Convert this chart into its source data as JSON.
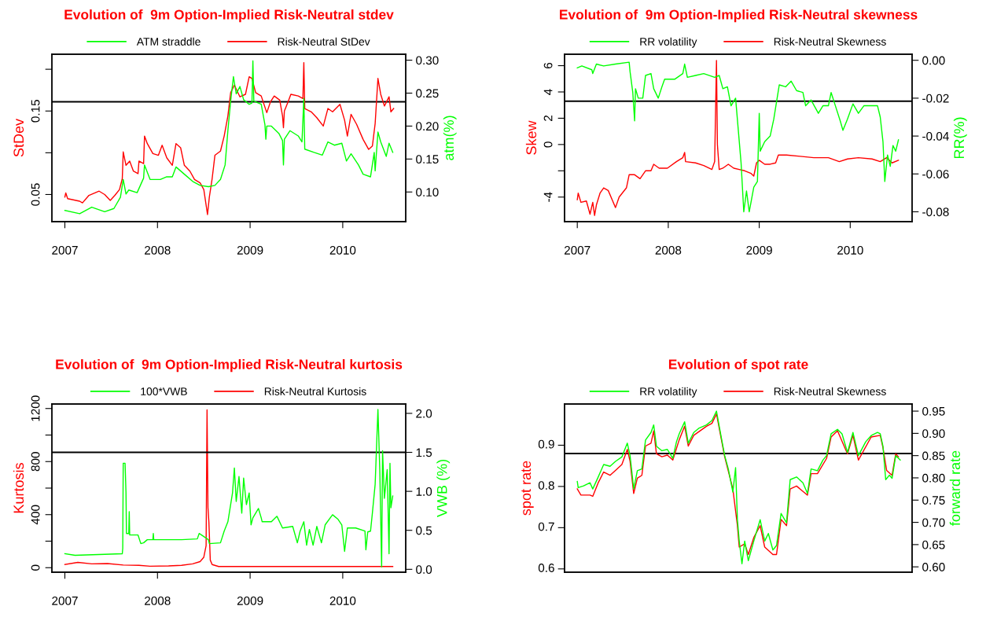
{
  "chart_data": [
    {
      "type": "line",
      "title": "Evolution of  9m Option-Implied Risk-Neutral stdev",
      "ylabel": "StDev",
      "y2label": "atm(%)",
      "legend": "top",
      "xlim": [
        2006.86,
        2010.68
      ],
      "xticks": [
        2007,
        2008,
        2009,
        2010
      ],
      "ylim": [
        0.0175,
        0.218
      ],
      "yticks": [
        0.05,
        {
          "value": 0.1,
          "label": null
        },
        0.15,
        {
          "value": 0.2,
          "label": null
        }
      ],
      "y2lim": [
        0.055,
        0.309
      ],
      "y2ticks": [
        {
          "value": 0.1,
          "label": "0.10"
        },
        0.15,
        {
          "value": 0.2,
          "label": "0.20"
        },
        0.25,
        {
          "value": 0.3,
          "label": "0.30"
        }
      ],
      "ref_lines": [
        {
          "axis": "y",
          "value": 0.161,
          "color": "#000000"
        }
      ],
      "series": [
        {
          "name": "ATM straddle",
          "color": "#00ff00",
          "axis": "y2",
          "x": [
            2007.0,
            2007.16,
            2007.29,
            2007.43,
            2007.53,
            2007.6,
            2007.63,
            2007.66,
            2007.69,
            2007.78,
            2007.85,
            2007.86,
            2007.92,
            2008.03,
            2008.1,
            2008.16,
            2008.2,
            2008.29,
            2008.38,
            2008.46,
            2008.55,
            2008.62,
            2008.68,
            2008.73,
            2008.76,
            2008.79,
            2008.82,
            2008.85,
            2008.89,
            2008.93,
            2008.99,
            2009.02,
            2009.03,
            2009.04,
            2009.12,
            2009.16,
            2009.17,
            2009.18,
            2009.23,
            2009.31,
            2009.35,
            2009.36,
            2009.37,
            2009.43,
            2009.52,
            2009.56,
            2009.58,
            2009.59,
            2009.69,
            2009.78,
            2009.84,
            2009.91,
            2009.99,
            2010.04,
            2010.09,
            2010.17,
            2010.22,
            2010.3,
            2010.34,
            2010.35,
            2010.38,
            2010.41,
            2010.47,
            2010.5,
            2010.54
          ],
          "values": [
            0.072,
            0.067,
            0.077,
            0.07,
            0.075,
            0.092,
            0.119,
            0.097,
            0.103,
            0.099,
            0.121,
            0.141,
            0.119,
            0.119,
            0.123,
            0.123,
            0.138,
            0.127,
            0.116,
            0.11,
            0.108,
            0.11,
            0.119,
            0.141,
            0.193,
            0.238,
            0.275,
            0.249,
            0.26,
            0.24,
            0.233,
            0.235,
            0.299,
            0.238,
            0.233,
            0.202,
            0.18,
            0.2,
            0.2,
            0.189,
            0.178,
            0.141,
            0.18,
            0.193,
            0.185,
            0.176,
            0.242,
            0.165,
            0.16,
            0.156,
            0.176,
            0.171,
            0.174,
            0.147,
            0.158,
            0.141,
            0.127,
            0.123,
            0.16,
            0.132,
            0.191,
            0.176,
            0.154,
            0.174,
            0.16
          ]
        },
        {
          "name": "Risk-Neutral StDev",
          "color": "#ff0000",
          "x": [
            2007.0,
            2007.01,
            2007.03,
            2007.16,
            2007.19,
            2007.26,
            2007.37,
            2007.43,
            2007.49,
            2007.54,
            2007.59,
            2007.62,
            2007.63,
            2007.66,
            2007.7,
            2007.74,
            2007.79,
            2007.8,
            2007.85,
            2007.86,
            2007.89,
            2007.95,
            2008.01,
            2008.05,
            2008.1,
            2008.16,
            2008.2,
            2008.25,
            2008.29,
            2008.35,
            2008.4,
            2008.46,
            2008.5,
            2008.54,
            2008.56,
            2008.59,
            2008.62,
            2008.68,
            2008.72,
            2008.76,
            2008.79,
            2008.83,
            2008.89,
            2008.95,
            2008.99,
            2009.02,
            2009.06,
            2009.12,
            2009.18,
            2009.22,
            2009.26,
            2009.32,
            2009.35,
            2009.36,
            2009.37,
            2009.41,
            2009.44,
            2009.52,
            2009.57,
            2009.58,
            2009.59,
            2009.66,
            2009.72,
            2009.79,
            2009.84,
            2009.89,
            2009.97,
            2010.02,
            2010.05,
            2010.09,
            2010.15,
            2010.22,
            2010.28,
            2010.32,
            2010.35,
            2010.38,
            2010.41,
            2010.45,
            2010.5,
            2010.52,
            2010.55
          ],
          "values": [
            0.047,
            0.052,
            0.045,
            0.042,
            0.04,
            0.049,
            0.054,
            0.05,
            0.043,
            0.049,
            0.056,
            0.069,
            0.101,
            0.085,
            0.09,
            0.078,
            0.075,
            0.09,
            0.087,
            0.12,
            0.111,
            0.099,
            0.097,
            0.109,
            0.094,
            0.085,
            0.111,
            0.106,
            0.085,
            0.078,
            0.068,
            0.064,
            0.056,
            0.026,
            0.047,
            0.069,
            0.097,
            0.102,
            0.12,
            0.144,
            0.172,
            0.181,
            0.167,
            0.17,
            0.191,
            0.189,
            0.172,
            0.168,
            0.148,
            0.161,
            0.168,
            0.163,
            0.144,
            0.13,
            0.15,
            0.161,
            0.17,
            0.168,
            0.165,
            0.208,
            0.153,
            0.149,
            0.142,
            0.132,
            0.153,
            0.149,
            0.158,
            0.139,
            0.12,
            0.146,
            0.134,
            0.116,
            0.104,
            0.108,
            0.135,
            0.189,
            0.17,
            0.156,
            0.167,
            0.149,
            0.153
          ]
        }
      ]
    },
    {
      "type": "line",
      "title": "Evolution of  9m Option-Implied Risk-Neutral skewness",
      "ylabel": "Skew",
      "y2label": "RR(%)",
      "legend": "top",
      "xlim": [
        2006.86,
        2010.68
      ],
      "xticks": [
        2007,
        2008,
        2009,
        2010
      ],
      "ylim": [
        -5.87,
        6.87
      ],
      "yticks": [
        -4,
        {
          "value": -2,
          "label": null
        },
        0,
        2,
        4,
        6
      ],
      "y2lim": [
        -0.0852,
        0.0032
      ],
      "y2ticks": [
        -0.08,
        -0.06,
        -0.04,
        -0.02,
        {
          "value": 0,
          "label": "0.00"
        }
      ],
      "ref_lines": [
        {
          "axis": "y",
          "value": 3.3,
          "color": "#000000"
        }
      ],
      "series": [
        {
          "name": "RR volatility",
          "color": "#00ff00",
          "axis": "y2",
          "x": [
            2007.0,
            2007.05,
            2007.16,
            2007.17,
            2007.21,
            2007.29,
            2007.42,
            2007.57,
            2007.58,
            2007.61,
            2007.63,
            2007.64,
            2007.67,
            2007.72,
            2007.75,
            2007.81,
            2007.84,
            2007.89,
            2007.93,
            2007.96,
            2008.07,
            2008.16,
            2008.18,
            2008.21,
            2008.3,
            2008.39,
            2008.51,
            2008.56,
            2008.6,
            2008.65,
            2008.69,
            2008.74,
            2008.77,
            2008.8,
            2008.83,
            2008.86,
            2008.89,
            2008.94,
            2008.98,
            2009.0,
            2009.01,
            2009.06,
            2009.12,
            2009.16,
            2009.19,
            2009.22,
            2009.29,
            2009.35,
            2009.41,
            2009.48,
            2009.51,
            2009.57,
            2009.65,
            2009.7,
            2009.76,
            2009.79,
            2009.83,
            2009.89,
            2009.92,
            2009.97,
            2010.03,
            2010.09,
            2010.15,
            2010.23,
            2010.3,
            2010.33,
            2010.36,
            2010.38,
            2010.41,
            2010.44,
            2010.47,
            2010.5,
            2010.53
          ],
          "values": [
            -0.004,
            -0.003,
            -0.005,
            -0.007,
            -0.002,
            -0.003,
            -0.002,
            -0.001,
            -0.006,
            -0.017,
            -0.032,
            -0.015,
            -0.02,
            -0.02,
            -0.008,
            -0.007,
            -0.015,
            -0.02,
            -0.014,
            -0.01,
            -0.01,
            -0.007,
            -0.002,
            -0.009,
            -0.008,
            -0.007,
            -0.009,
            -0.008,
            -0.015,
            -0.014,
            -0.024,
            -0.02,
            -0.037,
            -0.054,
            -0.08,
            -0.069,
            -0.08,
            -0.067,
            -0.064,
            -0.028,
            -0.048,
            -0.043,
            -0.04,
            -0.031,
            -0.022,
            -0.013,
            -0.014,
            -0.011,
            -0.016,
            -0.017,
            -0.024,
            -0.021,
            -0.028,
            -0.024,
            -0.024,
            -0.017,
            -0.023,
            -0.032,
            -0.037,
            -0.031,
            -0.023,
            -0.028,
            -0.024,
            -0.024,
            -0.024,
            -0.03,
            -0.043,
            -0.064,
            -0.05,
            -0.056,
            -0.045,
            -0.048,
            -0.042
          ]
        },
        {
          "name": "Risk-Neutral Skewness",
          "color": "#ff0000",
          "x": [
            2007.0,
            2007.01,
            2007.04,
            2007.1,
            2007.14,
            2007.17,
            2007.19,
            2007.21,
            2007.25,
            2007.29,
            2007.34,
            2007.42,
            2007.46,
            2007.54,
            2007.57,
            2007.63,
            2007.69,
            2007.75,
            2007.81,
            2007.84,
            2007.9,
            2007.99,
            2008.09,
            2008.16,
            2008.18,
            2008.19,
            2008.3,
            2008.39,
            2008.48,
            2008.51,
            2008.53,
            2008.54,
            2008.56,
            2008.6,
            2008.66,
            2008.72,
            2008.78,
            2008.84,
            2008.91,
            2008.94,
            2008.97,
            2009.0,
            2009.06,
            2009.12,
            2009.18,
            2009.21,
            2009.3,
            2009.45,
            2009.6,
            2009.76,
            2009.88,
            2009.97,
            2010.09,
            2010.24,
            2010.33,
            2010.4,
            2010.46,
            2010.53
          ],
          "values": [
            -4.2,
            -3.7,
            -4.4,
            -4.3,
            -5.3,
            -4.4,
            -5.4,
            -4.6,
            -3.7,
            -3.3,
            -3.5,
            -4.8,
            -4.0,
            -3.3,
            -2.3,
            -2.3,
            -2.6,
            -2.0,
            -2.0,
            -1.5,
            -1.8,
            -1.8,
            -1.3,
            -1.0,
            -0.6,
            -1.3,
            -1.4,
            -1.6,
            -1.9,
            -1.3,
            6.4,
            0.0,
            -1.9,
            -1.8,
            -1.5,
            -1.8,
            -1.9,
            -2.0,
            -2.2,
            -2.4,
            -1.4,
            -1.2,
            -1.5,
            -1.5,
            -1.4,
            -0.8,
            -0.8,
            -0.9,
            -1.0,
            -1.0,
            -1.3,
            -1.1,
            -1.0,
            -1.1,
            -1.3,
            -1.0,
            -1.4,
            -1.2
          ]
        }
      ]
    },
    {
      "type": "line",
      "title": "Evolution of  9m Option-Implied Risk-Neutral kurtosis",
      "ylabel": "Kurtosis",
      "y2label": "VWB (%)",
      "legend": "top",
      "xlim": [
        2006.86,
        2010.68
      ],
      "xticks": [
        2007,
        2008,
        2009,
        2010
      ],
      "ylim": [
        -34,
        1234
      ],
      "yticks": [
        0,
        {
          "value": 200,
          "label": null
        },
        400,
        {
          "value": 600,
          "label": null
        },
        800,
        {
          "value": 1000,
          "label": null
        },
        1200
      ],
      "y2lim": [
        -0.037,
        2.12
      ],
      "y2ticks": [
        {
          "value": 0,
          "label": "0.0"
        },
        0.5,
        {
          "value": 1,
          "label": "1.0"
        },
        1.5,
        {
          "value": 2,
          "label": "2.0"
        }
      ],
      "ref_lines": [
        {
          "axis": "y2",
          "value": 1.5,
          "color": "#000000"
        }
      ],
      "series": [
        {
          "name": "100*VWB",
          "color": "#00ff00",
          "axis": "y2",
          "x": [
            2007.0,
            2007.11,
            2007.62,
            2007.625,
            2007.63,
            2007.65,
            2007.66,
            2007.665,
            2007.69,
            2007.695,
            2007.7,
            2007.79,
            2007.82,
            2007.85,
            2007.89,
            2007.95,
            2007.955,
            2007.96,
            2008.26,
            2008.43,
            2008.45,
            2008.55,
            2008.56,
            2008.68,
            2008.72,
            2008.76,
            2008.81,
            2008.83,
            2008.85,
            2008.88,
            2008.91,
            2008.93,
            2008.96,
            2008.99,
            2009.01,
            2009.03,
            2009.09,
            2009.12,
            2009.13,
            2009.23,
            2009.29,
            2009.35,
            2009.46,
            2009.51,
            2009.54,
            2009.58,
            2009.61,
            2009.64,
            2009.68,
            2009.72,
            2009.77,
            2009.81,
            2009.89,
            2009.95,
            2009.99,
            2010.02,
            2010.05,
            2010.14,
            2010.24,
            2010.25,
            2010.27,
            2010.3,
            2010.32,
            2010.35,
            2010.38,
            2010.4,
            2010.42,
            2010.43,
            2010.45,
            2010.48,
            2010.5,
            2010.51,
            2010.52,
            2010.54
          ],
          "values": [
            0.2,
            0.18,
            0.2,
            0.27,
            1.36,
            1.36,
            0.98,
            0.46,
            0.46,
            0.74,
            0.44,
            0.44,
            0.33,
            0.34,
            0.38,
            0.38,
            0.46,
            0.38,
            0.38,
            0.39,
            0.46,
            0.38,
            0.33,
            0.34,
            0.49,
            0.61,
            0.98,
            1.3,
            0.87,
            1.19,
            0.72,
            1.17,
            0.83,
            0.98,
            0.57,
            0.66,
            0.78,
            0.66,
            0.61,
            0.61,
            0.68,
            0.53,
            0.55,
            0.34,
            0.49,
            0.61,
            0.31,
            0.51,
            0.31,
            0.55,
            0.34,
            0.57,
            0.7,
            0.64,
            0.57,
            0.23,
            0.53,
            0.53,
            0.49,
            0.25,
            0.48,
            0.49,
            0.72,
            1.09,
            2.05,
            1.28,
            0.03,
            1.52,
            0.91,
            1.28,
            0.2,
            1.36,
            0.79,
            0.94
          ]
        },
        {
          "name": "Risk-Neutral Kurtosis",
          "color": "#ff0000",
          "x": [
            2007.0,
            2007.14,
            2007.29,
            2007.46,
            2007.63,
            2007.8,
            2007.92,
            2008.12,
            2008.26,
            2008.38,
            2008.46,
            2008.5,
            2008.525,
            2008.535,
            2008.545,
            2008.555,
            2008.57,
            2008.59,
            2008.66,
            2008.83,
            2010.54
          ],
          "values": [
            24,
            40,
            29,
            31,
            20,
            18,
            11,
            13,
            18,
            29,
            46,
            79,
            167,
            1190,
            453,
            343,
            57,
            24,
            9,
            9,
            9
          ]
        }
      ]
    },
    {
      "type": "line",
      "title": "Evolution of spot rate",
      "ylabel": "spot rate",
      "y2label": "forward rate",
      "legend": "top",
      "tick_labels": "y",
      "xlim": [
        2006.86,
        2010.68
      ],
      "ylim": [
        0.592,
        1.0
      ],
      "yticks": [
        0.6,
        0.7,
        0.8,
        0.9
      ],
      "y2lim": [
        0.588,
        0.966
      ],
      "y2ticks": [
        {
          "value": 0.6,
          "label": "0.60"
        },
        0.65,
        {
          "value": 0.7,
          "label": "0.70"
        },
        0.75,
        {
          "value": 0.8,
          "label": "0.80"
        },
        0.85,
        {
          "value": 0.9,
          "label": "0.90"
        },
        0.95
      ],
      "ref_lines": [
        {
          "axis": "y",
          "value": 0.88,
          "color": "#000000"
        }
      ],
      "series": [
        {
          "name": "RR volatility",
          "color": "#00ff00",
          "axis": "y2",
          "x": [
            2007.0,
            2007.01,
            2007.07,
            2007.14,
            2007.17,
            2007.23,
            2007.29,
            2007.36,
            2007.42,
            2007.49,
            2007.55,
            2007.58,
            2007.62,
            2007.66,
            2007.71,
            2007.75,
            2007.81,
            2007.84,
            2007.87,
            2007.93,
            2007.99,
            2008.05,
            2008.09,
            2008.12,
            2008.18,
            2008.22,
            2008.28,
            2008.34,
            2008.42,
            2008.48,
            2008.53,
            2008.57,
            2008.62,
            2008.66,
            2008.71,
            2008.74,
            2008.76,
            2008.78,
            2008.81,
            2008.84,
            2008.88,
            2008.94,
            2009.01,
            2009.06,
            2009.1,
            2009.15,
            2009.19,
            2009.24,
            2009.3,
            2009.34,
            2009.41,
            2009.48,
            2009.53,
            2009.57,
            2009.64,
            2009.7,
            2009.74,
            2009.79,
            2009.86,
            2009.91,
            2009.97,
            2010.03,
            2010.09,
            2010.17,
            2010.23,
            2010.3,
            2010.33,
            2010.36,
            2010.39,
            2010.43,
            2010.46,
            2010.5,
            2010.53,
            2010.55
          ],
          "values": [
            0.792,
            0.778,
            0.782,
            0.789,
            0.775,
            0.802,
            0.83,
            0.826,
            0.837,
            0.847,
            0.878,
            0.85,
            0.775,
            0.816,
            0.82,
            0.885,
            0.902,
            0.919,
            0.871,
            0.861,
            0.864,
            0.844,
            0.881,
            0.899,
            0.926,
            0.878,
            0.902,
            0.912,
            0.919,
            0.929,
            0.95,
            0.905,
            0.85,
            0.82,
            0.768,
            0.823,
            0.706,
            0.658,
            0.607,
            0.658,
            0.614,
            0.658,
            0.706,
            0.658,
            0.675,
            0.638,
            0.648,
            0.72,
            0.699,
            0.796,
            0.802,
            0.789,
            0.765,
            0.82,
            0.816,
            0.84,
            0.85,
            0.899,
            0.909,
            0.899,
            0.857,
            0.902,
            0.85,
            0.881,
            0.895,
            0.902,
            0.899,
            0.871,
            0.796,
            0.806,
            0.799,
            0.85,
            0.844,
            0.84
          ]
        },
        {
          "name": "Risk-Neutral Skewness",
          "color": "#ff0000",
          "x": [
            2007.0,
            2007.04,
            2007.14,
            2007.17,
            2007.23,
            2007.29,
            2007.36,
            2007.42,
            2007.49,
            2007.55,
            2007.58,
            2007.62,
            2007.66,
            2007.71,
            2007.75,
            2007.81,
            2007.84,
            2007.87,
            2007.93,
            2007.99,
            2008.05,
            2008.12,
            2008.18,
            2008.22,
            2008.28,
            2008.42,
            2008.48,
            2008.53,
            2008.62,
            2008.71,
            2008.76,
            2008.78,
            2008.84,
            2008.88,
            2008.94,
            2009.01,
            2009.06,
            2009.15,
            2009.19,
            2009.24,
            2009.3,
            2009.34,
            2009.41,
            2009.53,
            2009.57,
            2009.64,
            2009.74,
            2009.79,
            2009.86,
            2009.97,
            2010.03,
            2010.09,
            2010.23,
            2010.33,
            2010.36,
            2010.4,
            2010.46,
            2010.5,
            2010.53
          ],
          "values": [
            0.794,
            0.779,
            0.779,
            0.776,
            0.809,
            0.835,
            0.827,
            0.839,
            0.853,
            0.89,
            0.861,
            0.783,
            0.82,
            0.827,
            0.898,
            0.905,
            0.935,
            0.879,
            0.872,
            0.876,
            0.864,
            0.913,
            0.946,
            0.898,
            0.924,
            0.946,
            0.953,
            0.976,
            0.872,
            0.794,
            0.705,
            0.653,
            0.661,
            0.635,
            0.676,
            0.705,
            0.653,
            0.635,
            0.635,
            0.72,
            0.705,
            0.794,
            0.801,
            0.779,
            0.831,
            0.831,
            0.868,
            0.92,
            0.935,
            0.879,
            0.924,
            0.864,
            0.92,
            0.924,
            0.894,
            0.839,
            0.827,
            0.879,
            0.872
          ]
        }
      ]
    }
  ]
}
